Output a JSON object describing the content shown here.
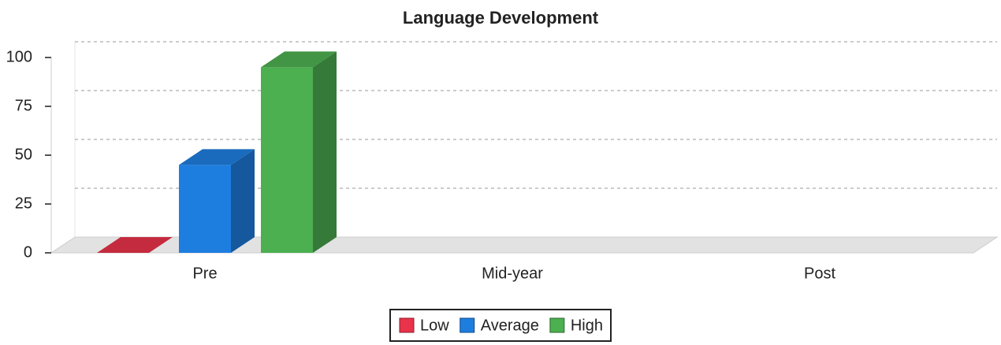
{
  "chart_data": {
    "type": "bar3d",
    "title": "Language Development",
    "categories": [
      "Pre",
      "Mid-year",
      "Post"
    ],
    "series": [
      {
        "name": "Low",
        "color": "#e8334a",
        "values": [
          0,
          null,
          null
        ]
      },
      {
        "name": "Average",
        "color": "#1e7ee0",
        "values": [
          45,
          null,
          null
        ]
      },
      {
        "name": "High",
        "color": "#4caf50",
        "values": [
          95,
          null,
          null
        ]
      }
    ],
    "ylim": [
      0,
      100
    ],
    "yticks": [
      0,
      25,
      50,
      75,
      100
    ],
    "grid": true,
    "legend": "bottom"
  }
}
